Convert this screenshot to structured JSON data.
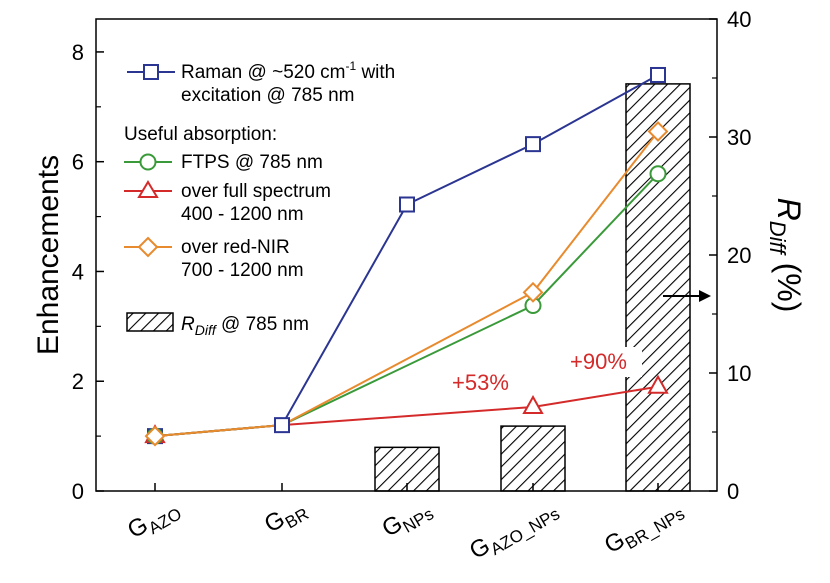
{
  "chart_data": {
    "type": "line",
    "categories": [
      {
        "base": "G",
        "sub": "AZO"
      },
      {
        "base": "G",
        "sub": "BR"
      },
      {
        "base": "G",
        "sub": "NPs"
      },
      {
        "base": "G",
        "sub": "AZO_NPs"
      },
      {
        "base": "G",
        "sub": "BR_NPs"
      }
    ],
    "ylabel": "Enhancements",
    "ylim": [
      0,
      8.6
    ],
    "yticks": [
      "0",
      "2",
      "4",
      "6",
      "8"
    ],
    "y2label": {
      "base": "R",
      "sub": "Diff",
      "unit": " (%)"
    },
    "y2lim": [
      0,
      40
    ],
    "y2ticks": [
      "0",
      "10",
      "20",
      "30",
      "40"
    ],
    "series": [
      {
        "name": "raman",
        "color": "#2b3592",
        "marker": "square",
        "values": [
          1.0,
          1.2,
          5.22,
          6.32,
          7.58
        ]
      },
      {
        "name": "ftps",
        "color": "#3a9a3a",
        "marker": "circle",
        "values": [
          1.0,
          1.2,
          null,
          3.38,
          5.78
        ]
      },
      {
        "name": "full",
        "color": "#d42a2a",
        "marker": "triangle",
        "values": [
          1.0,
          1.2,
          null,
          1.53,
          1.9
        ]
      },
      {
        "name": "rednir",
        "color": "#e88a2e",
        "marker": "diamond",
        "values": [
          1.0,
          1.2,
          null,
          3.62,
          6.55
        ]
      }
    ],
    "bars": {
      "name": "rdiff",
      "axis": "right",
      "values": [
        null,
        null,
        3.7,
        5.5,
        34.5
      ]
    },
    "legend": {
      "raman_l1": "Raman @ ~520 cm",
      "raman_sup": "-1",
      "raman_l1b": " with",
      "raman_l2": "excitation @ 785 nm",
      "useful": "Useful absorption:",
      "ftps": "FTPS @ 785 nm",
      "full_l1": "over full spectrum",
      "full_l2": "400 - 1200 nm",
      "rednir_l1": "over red-NIR",
      "rednir_l2": "700 - 1200 nm",
      "rdiff_base": "R",
      "rdiff_sub": "Diff",
      "rdiff_tail": " @ 785 nm"
    },
    "annotations": {
      "a53": "+53%",
      "a90": "+90%"
    },
    "arrow": "right"
  }
}
